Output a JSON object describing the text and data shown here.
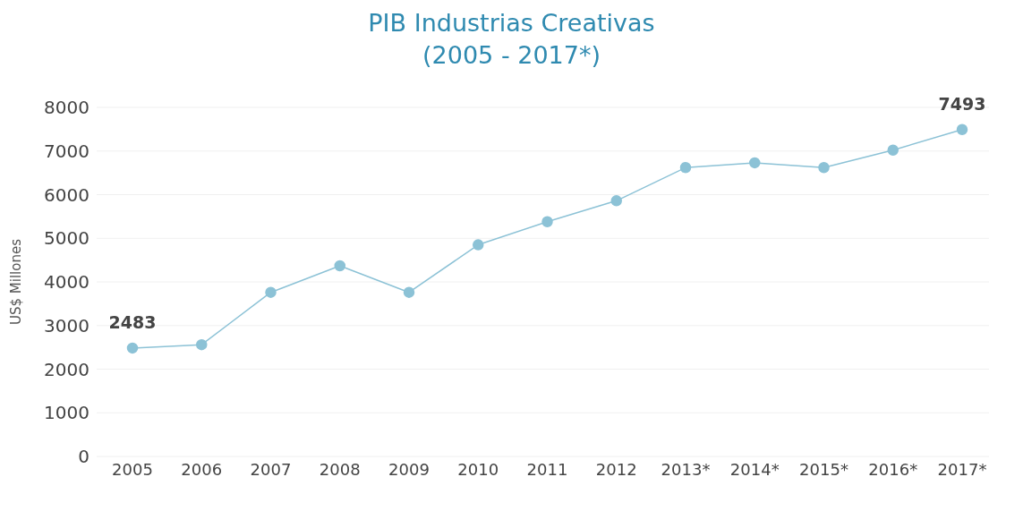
{
  "chart_data": {
    "type": "line",
    "title": "PIB Industrias Creativas\n(2005 - 2017*)",
    "ylabel": "US$ Millones",
    "categories": [
      "2005",
      "2006",
      "2007",
      "2008",
      "2009",
      "2010",
      "2011",
      "2012",
      "2013*",
      "2014*",
      "2015*",
      "2016*",
      "2017*"
    ],
    "series": [
      {
        "color": "#8cc2d6",
        "values": [
          2483,
          2560,
          3760,
          4370,
          3760,
          4850,
          5380,
          5860,
          6620,
          6730,
          6620,
          7020,
          7493
        ],
        "value_labels": [
          "2483",
          null,
          null,
          null,
          null,
          null,
          null,
          null,
          null,
          null,
          null,
          null,
          "7493"
        ]
      }
    ],
    "ylim": [
      0,
      8000
    ],
    "yticks": [
      0,
      1000,
      2000,
      3000,
      4000,
      5000,
      6000,
      7000,
      8000
    ],
    "grid": "y",
    "marker": "circle",
    "line_style": "solid"
  }
}
